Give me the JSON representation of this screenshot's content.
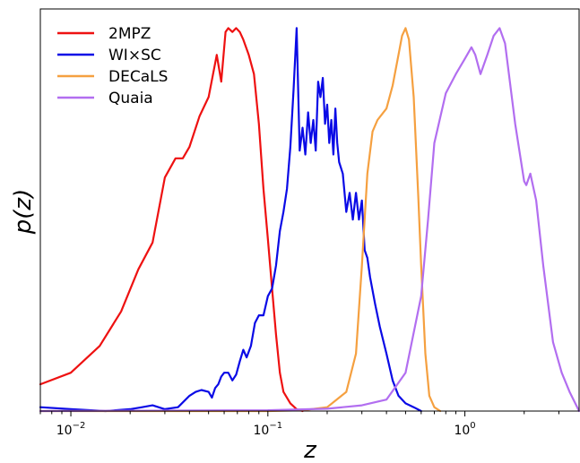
{
  "chart_data": {
    "type": "line",
    "xlabel": "z",
    "ylabel": "p(z)",
    "x_scale": "log",
    "xlim": [
      0.007,
      3.8
    ],
    "ylim": [
      0,
      1.05
    ],
    "y_ticks_shown": false,
    "legend_position": "top-left",
    "x_ticks": [
      {
        "value": 0.01,
        "base": "10",
        "exp": "−2"
      },
      {
        "value": 0.1,
        "base": "10",
        "exp": "−1"
      },
      {
        "value": 1,
        "base": "10",
        "exp": "0"
      }
    ],
    "series": [
      {
        "name": "2MPZ",
        "color": "#ee1111",
        "x": [
          0.007,
          0.01,
          0.014,
          0.018,
          0.022,
          0.026,
          0.03,
          0.034,
          0.037,
          0.04,
          0.045,
          0.05,
          0.055,
          0.058,
          0.061,
          0.063,
          0.066,
          0.069,
          0.072,
          0.075,
          0.08,
          0.085,
          0.09,
          0.095,
          0.1,
          0.105,
          0.11,
          0.115,
          0.12,
          0.13,
          0.14,
          0.15
        ],
        "y": [
          0.07,
          0.1,
          0.17,
          0.26,
          0.37,
          0.44,
          0.61,
          0.66,
          0.66,
          0.69,
          0.77,
          0.82,
          0.93,
          0.86,
          0.99,
          1.0,
          0.99,
          1.0,
          0.99,
          0.97,
          0.93,
          0.88,
          0.75,
          0.58,
          0.45,
          0.32,
          0.2,
          0.1,
          0.05,
          0.02,
          0.005,
          0.0
        ]
      },
      {
        "name": "WI×SC",
        "color": "#0a0ae6",
        "x": [
          0.007,
          0.01,
          0.015,
          0.02,
          0.023,
          0.026,
          0.03,
          0.035,
          0.04,
          0.043,
          0.046,
          0.05,
          0.052,
          0.054,
          0.056,
          0.058,
          0.06,
          0.063,
          0.066,
          0.069,
          0.072,
          0.075,
          0.078,
          0.082,
          0.086,
          0.09,
          0.095,
          0.1,
          0.105,
          0.11,
          0.115,
          0.12,
          0.125,
          0.13,
          0.135,
          0.14,
          0.145,
          0.15,
          0.155,
          0.16,
          0.165,
          0.17,
          0.175,
          0.18,
          0.185,
          0.19,
          0.195,
          0.2,
          0.205,
          0.21,
          0.215,
          0.22,
          0.225,
          0.23,
          0.24,
          0.25,
          0.26,
          0.27,
          0.28,
          0.29,
          0.3,
          0.31,
          0.32,
          0.33,
          0.35,
          0.37,
          0.4,
          0.43,
          0.46,
          0.5,
          0.55,
          0.6
        ],
        "y": [
          0.01,
          0.005,
          0.0,
          0.005,
          0.01,
          0.015,
          0.005,
          0.01,
          0.04,
          0.05,
          0.055,
          0.05,
          0.035,
          0.06,
          0.07,
          0.09,
          0.1,
          0.1,
          0.08,
          0.095,
          0.13,
          0.16,
          0.14,
          0.17,
          0.23,
          0.25,
          0.25,
          0.3,
          0.32,
          0.38,
          0.47,
          0.52,
          0.58,
          0.69,
          0.84,
          1.0,
          0.68,
          0.74,
          0.67,
          0.78,
          0.7,
          0.76,
          0.68,
          0.86,
          0.82,
          0.87,
          0.75,
          0.8,
          0.7,
          0.76,
          0.67,
          0.79,
          0.7,
          0.65,
          0.62,
          0.52,
          0.57,
          0.5,
          0.57,
          0.5,
          0.55,
          0.42,
          0.4,
          0.35,
          0.28,
          0.22,
          0.15,
          0.08,
          0.04,
          0.02,
          0.01,
          0.0
        ]
      },
      {
        "name": "DECaLS",
        "color": "#f5a040",
        "x": [
          0.007,
          0.1,
          0.15,
          0.2,
          0.25,
          0.28,
          0.3,
          0.32,
          0.34,
          0.36,
          0.4,
          0.43,
          0.46,
          0.48,
          0.5,
          0.52,
          0.55,
          0.58,
          0.6,
          0.63,
          0.66,
          0.7,
          0.75
        ],
        "y": [
          0.0,
          0.0,
          0.002,
          0.01,
          0.05,
          0.15,
          0.38,
          0.62,
          0.73,
          0.76,
          0.79,
          0.85,
          0.93,
          0.98,
          1.0,
          0.97,
          0.82,
          0.56,
          0.38,
          0.15,
          0.04,
          0.01,
          0.0
        ]
      },
      {
        "name": "Quaia",
        "color": "#b26ef0",
        "x": [
          0.007,
          0.1,
          0.2,
          0.3,
          0.4,
          0.5,
          0.6,
          0.65,
          0.7,
          0.8,
          0.9,
          1.0,
          1.08,
          1.13,
          1.2,
          1.3,
          1.4,
          1.5,
          1.6,
          1.8,
          2.0,
          2.05,
          2.15,
          2.3,
          2.5,
          2.8,
          3.1,
          3.4,
          3.8
        ],
        "y": [
          0.0,
          0.002,
          0.006,
          0.015,
          0.03,
          0.1,
          0.3,
          0.5,
          0.7,
          0.83,
          0.88,
          0.92,
          0.95,
          0.93,
          0.88,
          0.93,
          0.98,
          1.0,
          0.96,
          0.75,
          0.6,
          0.59,
          0.62,
          0.55,
          0.38,
          0.18,
          0.1,
          0.05,
          0.0
        ]
      }
    ]
  }
}
